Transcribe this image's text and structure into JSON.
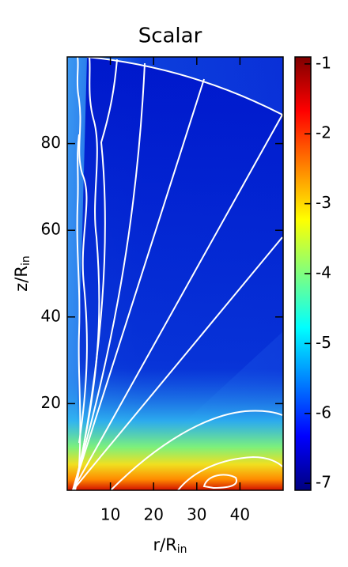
{
  "chart_data": {
    "type": "heatmap",
    "title": "Scalar",
    "xlabel": "r/R",
    "xlabel_sub": "in",
    "ylabel": "z/R",
    "ylabel_sub": "in",
    "xlim": [
      0,
      50
    ],
    "ylim": [
      0,
      100
    ],
    "xticks": [
      10,
      20,
      30,
      40
    ],
    "yticks": [
      20,
      40,
      60,
      80
    ],
    "colorbar": {
      "lim": [
        -7.1,
        -0.9
      ],
      "ticks": [
        -7,
        -6,
        -5,
        -4,
        -3,
        -2,
        -1
      ],
      "colors": [
        "#00007f",
        "#0000ff",
        "#007fff",
        "#00ffff",
        "#7fff7f",
        "#ffff00",
        "#ff7f00",
        "#ff0000",
        "#7f0000"
      ]
    }
  }
}
